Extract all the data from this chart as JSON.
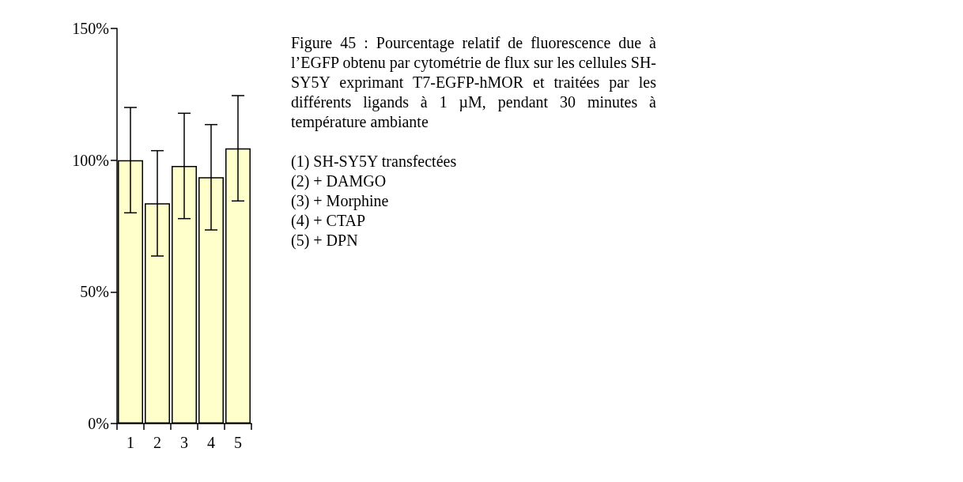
{
  "chart_data": {
    "type": "bar",
    "categories": [
      "1",
      "2",
      "3",
      "4",
      "5"
    ],
    "values": [
      100,
      83.6,
      97.8,
      93.5,
      104.5
    ],
    "errors": [
      20,
      20,
      20,
      20,
      20
    ],
    "color": "#ffffcc",
    "ylim": [
      0,
      150
    ],
    "yticks": [
      {
        "value": 0,
        "label": "0%"
      },
      {
        "value": 50,
        "label": "50%"
      },
      {
        "value": 100,
        "label": "100%"
      },
      {
        "value": 150,
        "label": "150%"
      }
    ],
    "grid": false,
    "annotations": [
      "Figure 45 : Pourcentage relatif de fluorescence due à l’EGFP obtenu par cytométrie de flux sur les cellules SH-SY5Y exprimant T7-EGFP-hMOR et traitées par les différents ligands à 1 µM, pendant 30 minutes à température ambiante",
      "(1) SH-SY5Y transfectées",
      "(2) + DAMGO",
      "(3) + Morphine",
      "(4) + CTAP",
      "(5) + DPN"
    ]
  }
}
